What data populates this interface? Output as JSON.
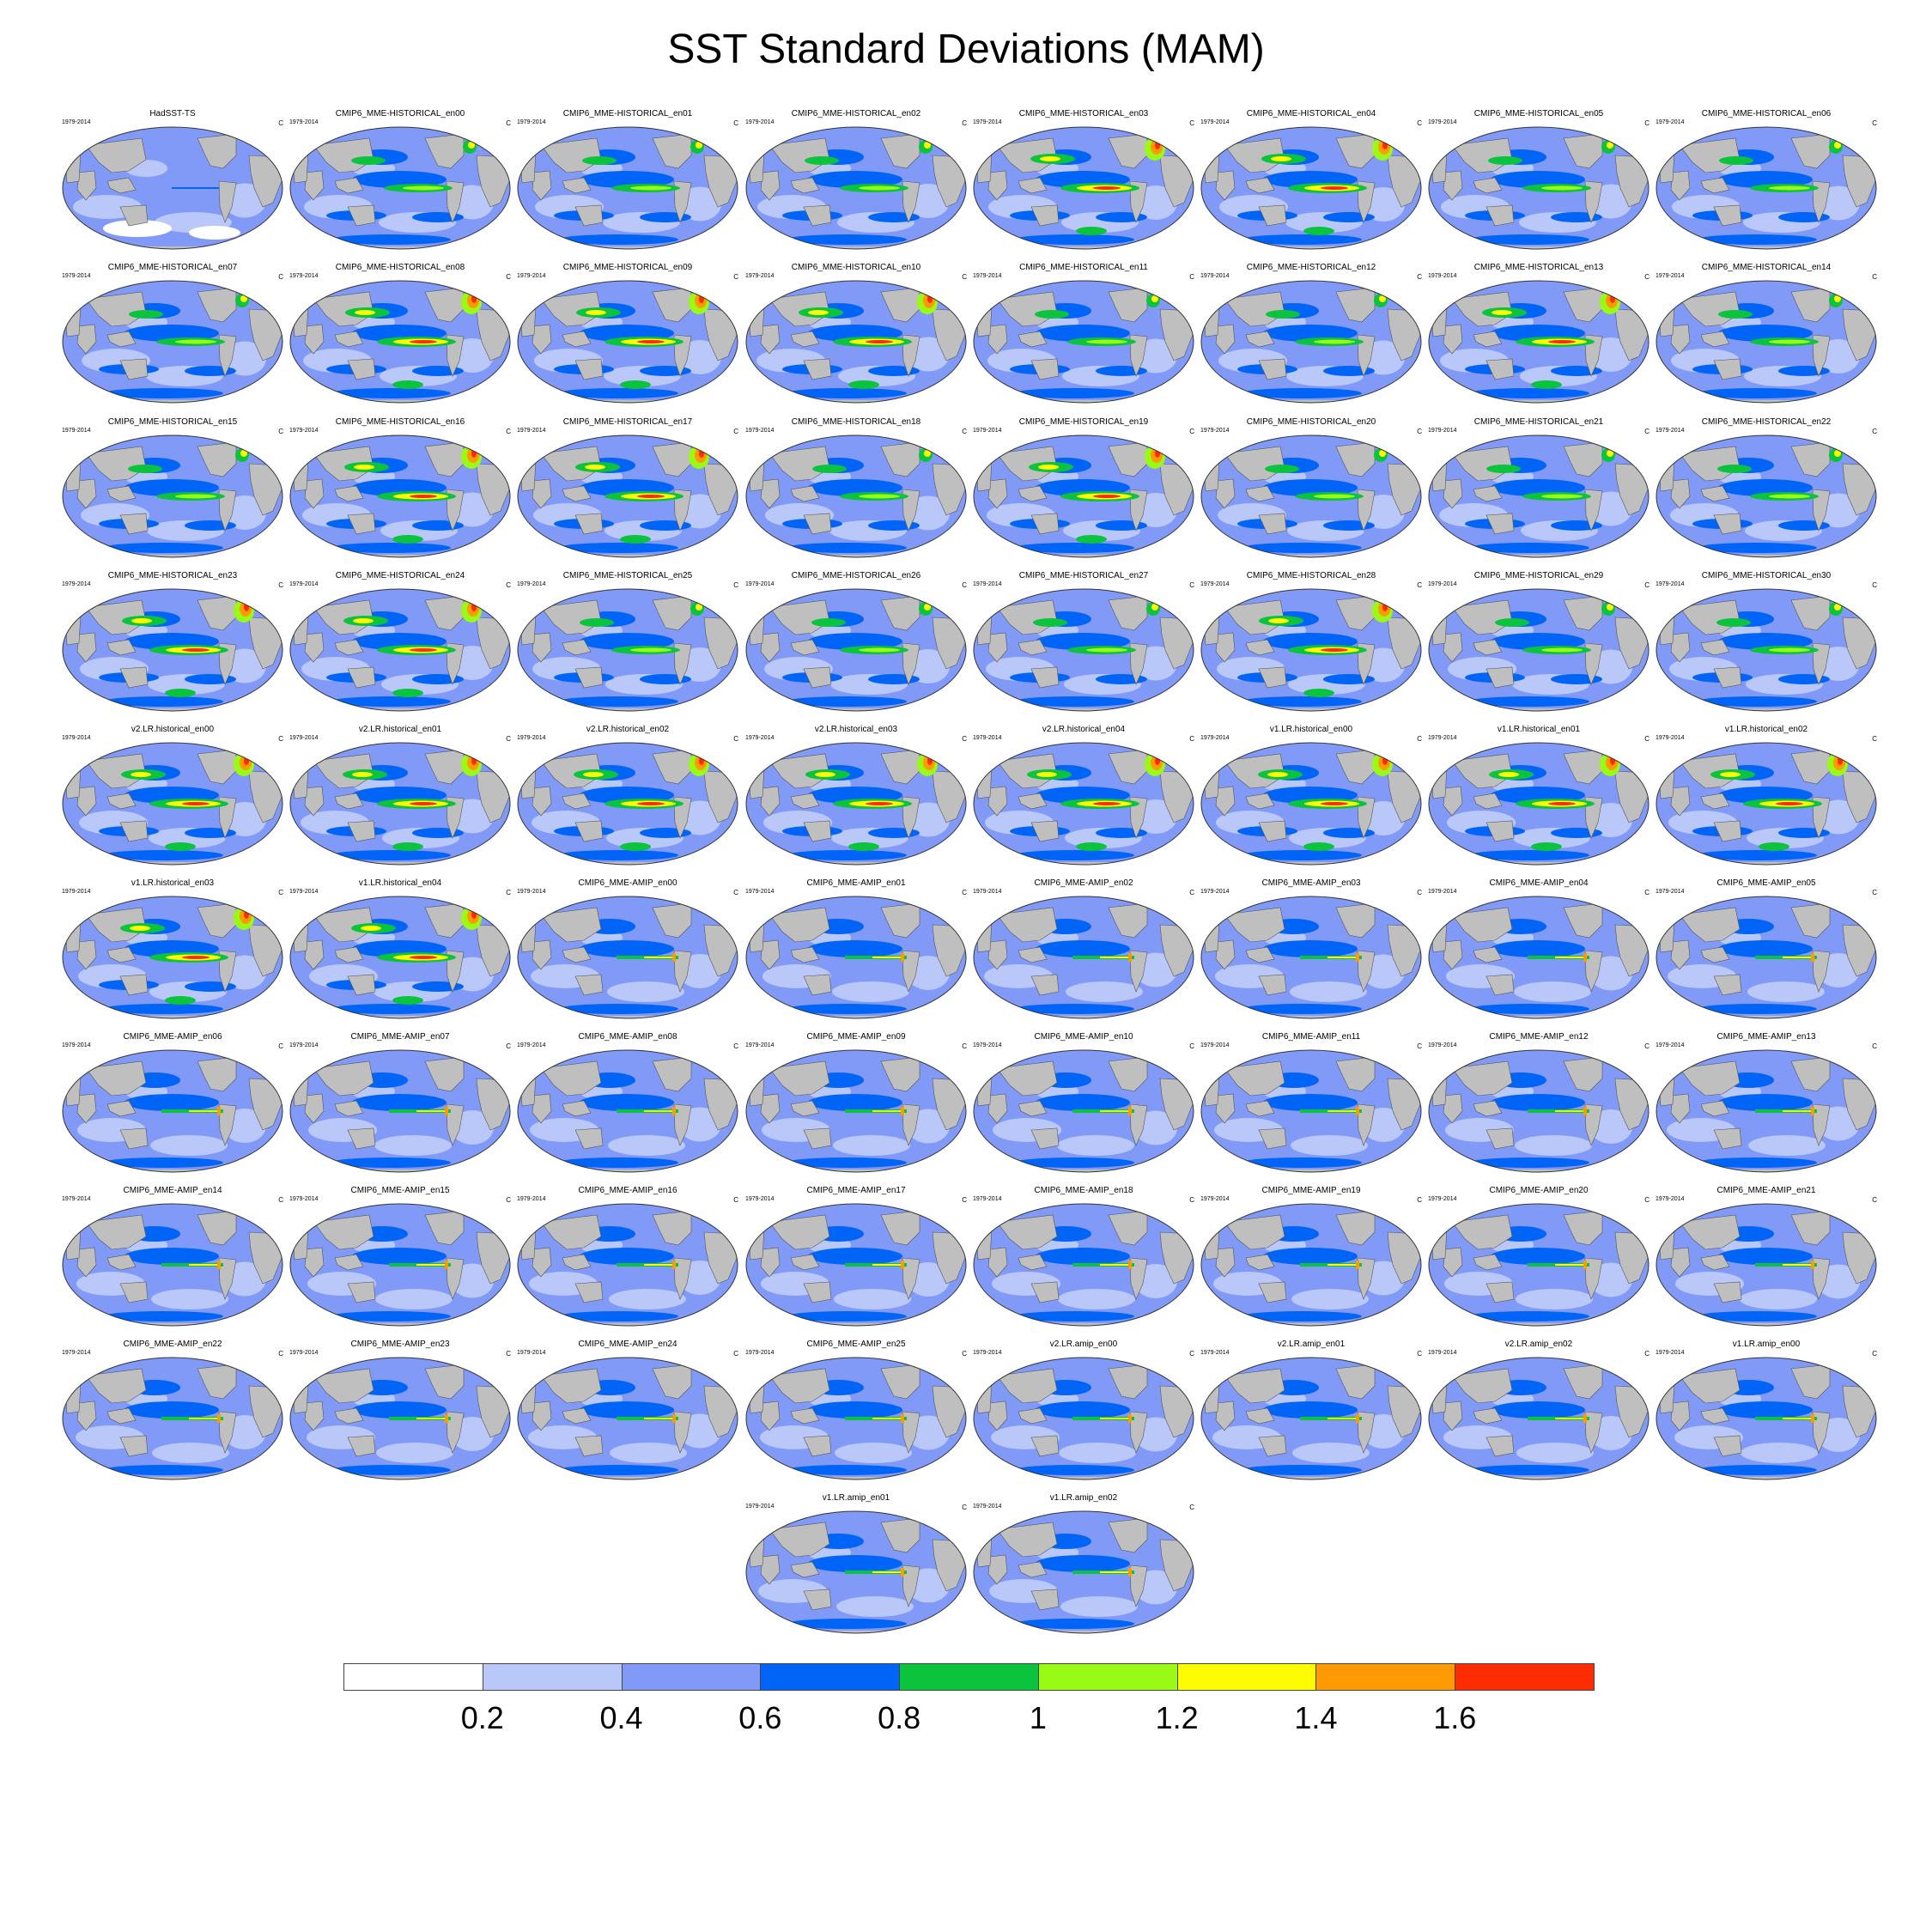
{
  "title": "SST Standard Deviations (MAM)",
  "period": "1979-2014",
  "units": "C",
  "colorbar": {
    "colors": [
      "#ffffff",
      "#b9c8f9",
      "#8199f7",
      "#0064f7",
      "#0bc33c",
      "#98fa15",
      "#fffb00",
      "#ff9a02",
      "#fe2c02"
    ],
    "labels": [
      "0.2",
      "0.4",
      "0.6",
      "0.8",
      "1",
      "1.2",
      "1.4",
      "1.6"
    ]
  },
  "panels": [
    {
      "title": "HadSST-TS",
      "lvl": 0
    },
    {
      "title": "CMIP6_MME-HISTORICAL_en00",
      "lvl": 2
    },
    {
      "title": "CMIP6_MME-HISTORICAL_en01",
      "lvl": 2
    },
    {
      "title": "CMIP6_MME-HISTORICAL_en02",
      "lvl": 2
    },
    {
      "title": "CMIP6_MME-HISTORICAL_en03",
      "lvl": 3
    },
    {
      "title": "CMIP6_MME-HISTORICAL_en04",
      "lvl": 3
    },
    {
      "title": "CMIP6_MME-HISTORICAL_en05",
      "lvl": 2
    },
    {
      "title": "CMIP6_MME-HISTORICAL_en06",
      "lvl": 2
    },
    {
      "title": "CMIP6_MME-HISTORICAL_en07",
      "lvl": 2
    },
    {
      "title": "CMIP6_MME-HISTORICAL_en08",
      "lvl": 3
    },
    {
      "title": "CMIP6_MME-HISTORICAL_en09",
      "lvl": 3
    },
    {
      "title": "CMIP6_MME-HISTORICAL_en10",
      "lvl": 3
    },
    {
      "title": "CMIP6_MME-HISTORICAL_en11",
      "lvl": 2
    },
    {
      "title": "CMIP6_MME-HISTORICAL_en12",
      "lvl": 2
    },
    {
      "title": "CMIP6_MME-HISTORICAL_en13",
      "lvl": 3
    },
    {
      "title": "CMIP6_MME-HISTORICAL_en14",
      "lvl": 2
    },
    {
      "title": "CMIP6_MME-HISTORICAL_en15",
      "lvl": 2
    },
    {
      "title": "CMIP6_MME-HISTORICAL_en16",
      "lvl": 3
    },
    {
      "title": "CMIP6_MME-HISTORICAL_en17",
      "lvl": 3
    },
    {
      "title": "CMIP6_MME-HISTORICAL_en18",
      "lvl": 2
    },
    {
      "title": "CMIP6_MME-HISTORICAL_en19",
      "lvl": 3
    },
    {
      "title": "CMIP6_MME-HISTORICAL_en20",
      "lvl": 2
    },
    {
      "title": "CMIP6_MME-HISTORICAL_en21",
      "lvl": 2
    },
    {
      "title": "CMIP6_MME-HISTORICAL_en22",
      "lvl": 2
    },
    {
      "title": "CMIP6_MME-HISTORICAL_en23",
      "lvl": 3
    },
    {
      "title": "CMIP6_MME-HISTORICAL_en24",
      "lvl": 3
    },
    {
      "title": "CMIP6_MME-HISTORICAL_en25",
      "lvl": 2
    },
    {
      "title": "CMIP6_MME-HISTORICAL_en26",
      "lvl": 2
    },
    {
      "title": "CMIP6_MME-HISTORICAL_en27",
      "lvl": 2
    },
    {
      "title": "CMIP6_MME-HISTORICAL_en28",
      "lvl": 3
    },
    {
      "title": "CMIP6_MME-HISTORICAL_en29",
      "lvl": 2
    },
    {
      "title": "CMIP6_MME-HISTORICAL_en30",
      "lvl": 2
    },
    {
      "title": "v2.LR.historical_en00",
      "lvl": 3
    },
    {
      "title": "v2.LR.historical_en01",
      "lvl": 3
    },
    {
      "title": "v2.LR.historical_en02",
      "lvl": 3
    },
    {
      "title": "v2.LR.historical_en03",
      "lvl": 3
    },
    {
      "title": "v2.LR.historical_en04",
      "lvl": 3
    },
    {
      "title": "v1.LR.historical_en00",
      "lvl": 3
    },
    {
      "title": "v1.LR.historical_en01",
      "lvl": 3
    },
    {
      "title": "v1.LR.historical_en02",
      "lvl": 3
    },
    {
      "title": "v1.LR.historical_en03",
      "lvl": 3
    },
    {
      "title": "v1.LR.historical_en04",
      "lvl": 3
    },
    {
      "title": "CMIP6_MME-AMIP_en00",
      "lvl": 1
    },
    {
      "title": "CMIP6_MME-AMIP_en01",
      "lvl": 1
    },
    {
      "title": "CMIP6_MME-AMIP_en02",
      "lvl": 1
    },
    {
      "title": "CMIP6_MME-AMIP_en03",
      "lvl": 1
    },
    {
      "title": "CMIP6_MME-AMIP_en04",
      "lvl": 1
    },
    {
      "title": "CMIP6_MME-AMIP_en05",
      "lvl": 1
    },
    {
      "title": "CMIP6_MME-AMIP_en06",
      "lvl": 1
    },
    {
      "title": "CMIP6_MME-AMIP_en07",
      "lvl": 1
    },
    {
      "title": "CMIP6_MME-AMIP_en08",
      "lvl": 1
    },
    {
      "title": "CMIP6_MME-AMIP_en09",
      "lvl": 1
    },
    {
      "title": "CMIP6_MME-AMIP_en10",
      "lvl": 1
    },
    {
      "title": "CMIP6_MME-AMIP_en11",
      "lvl": 1
    },
    {
      "title": "CMIP6_MME-AMIP_en12",
      "lvl": 1
    },
    {
      "title": "CMIP6_MME-AMIP_en13",
      "lvl": 1
    },
    {
      "title": "CMIP6_MME-AMIP_en14",
      "lvl": 1
    },
    {
      "title": "CMIP6_MME-AMIP_en15",
      "lvl": 1
    },
    {
      "title": "CMIP6_MME-AMIP_en16",
      "lvl": 1
    },
    {
      "title": "CMIP6_MME-AMIP_en17",
      "lvl": 1
    },
    {
      "title": "CMIP6_MME-AMIP_en18",
      "lvl": 1
    },
    {
      "title": "CMIP6_MME-AMIP_en19",
      "lvl": 1
    },
    {
      "title": "CMIP6_MME-AMIP_en20",
      "lvl": 1
    },
    {
      "title": "CMIP6_MME-AMIP_en21",
      "lvl": 1
    },
    {
      "title": "CMIP6_MME-AMIP_en22",
      "lvl": 1
    },
    {
      "title": "CMIP6_MME-AMIP_en23",
      "lvl": 1
    },
    {
      "title": "CMIP6_MME-AMIP_en24",
      "lvl": 1
    },
    {
      "title": "CMIP6_MME-AMIP_en25",
      "lvl": 1
    },
    {
      "title": "v2.LR.amip_en00",
      "lvl": 1
    },
    {
      "title": "v2.LR.amip_en01",
      "lvl": 1
    },
    {
      "title": "v2.LR.amip_en02",
      "lvl": 1
    },
    {
      "title": "v1.LR.amip_en00",
      "lvl": 1
    },
    {
      "title": "v1.LR.amip_en01",
      "lvl": 1
    },
    {
      "title": "v1.LR.amip_en02",
      "lvl": 1
    }
  ]
}
